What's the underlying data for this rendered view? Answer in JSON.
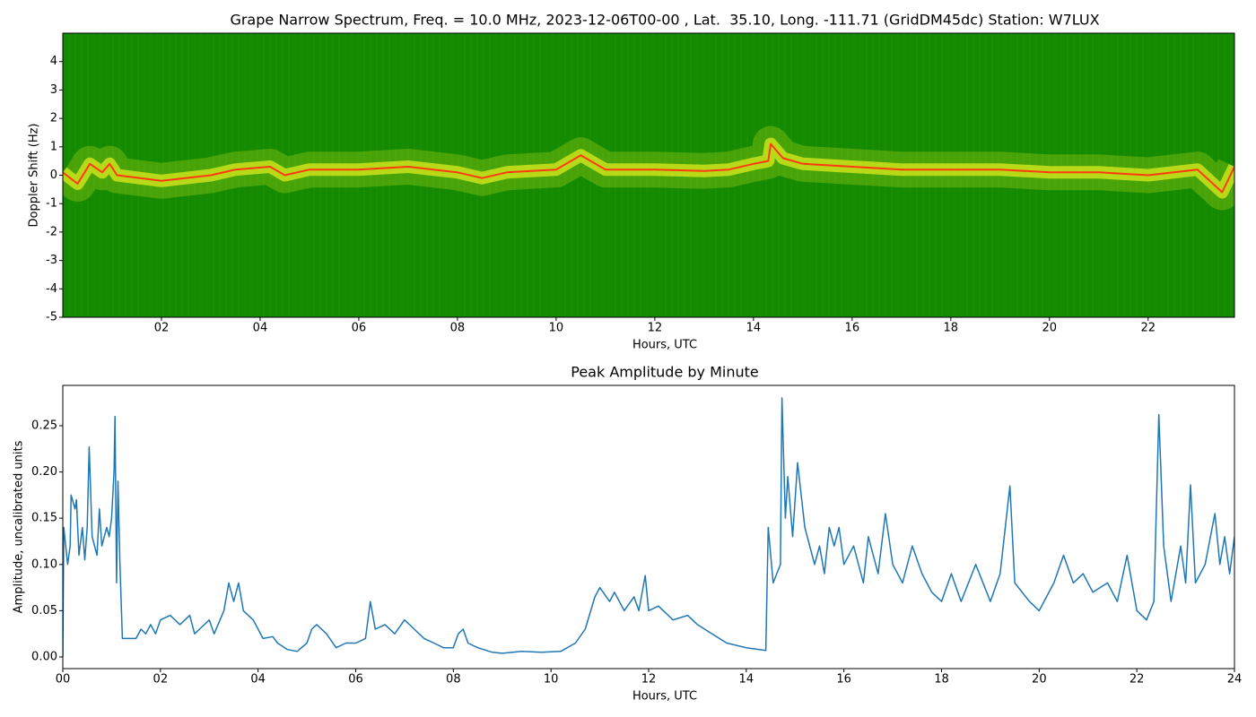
{
  "chart_data": [
    {
      "type": "spectrogram",
      "title": "Grape Narrow Spectrum, Freq. = 10.0 MHz, 2023-12-06T00-00 , Lat.  35.10, Long. -111.71 (GridDM45dc) Station: W7LUX",
      "x_label": "Hours, UTC",
      "y_label": "Doppler Shift (Hz)",
      "background": "#138a00",
      "glow": "#e8f020",
      "xlim": [
        0,
        23.75
      ],
      "ylim": [
        -5,
        5
      ],
      "xticks": [
        {
          "value": 2,
          "label": "02"
        },
        {
          "value": 4,
          "label": "04"
        },
        {
          "value": 6,
          "label": "06"
        },
        {
          "value": 8,
          "label": "08"
        },
        10,
        12,
        14,
        16,
        18,
        20,
        22
      ],
      "yticks": [
        -5,
        -4,
        -3,
        -2,
        -1,
        0,
        1,
        2,
        3,
        4
      ],
      "series": [
        {
          "color": "#ff3a10",
          "x": [
            0,
            0.3,
            0.55,
            0.8,
            0.95,
            1.1,
            2,
            3,
            3.5,
            4.2,
            4.5,
            5,
            6,
            7,
            8,
            8.5,
            9,
            10,
            10.5,
            11,
            12,
            13,
            13.5,
            14,
            14.3,
            14.35,
            14.6,
            15,
            16,
            17,
            18,
            19,
            20,
            21,
            22,
            23,
            23.5,
            23.75
          ],
          "values": [
            0.1,
            -0.3,
            0.4,
            0.1,
            0.4,
            0.0,
            -0.2,
            0.0,
            0.2,
            0.3,
            0.0,
            0.2,
            0.2,
            0.3,
            0.1,
            -0.1,
            0.1,
            0.2,
            0.7,
            0.2,
            0.2,
            0.15,
            0.2,
            0.4,
            0.5,
            1.1,
            0.6,
            0.4,
            0.3,
            0.2,
            0.2,
            0.2,
            0.1,
            0.1,
            0.0,
            0.2,
            -0.6,
            0.3
          ]
        }
      ]
    },
    {
      "type": "line",
      "title": "Peak Amplitude by Minute",
      "x_label": "Hours, UTC",
      "y_label": "Amplitude, uncalibrated units",
      "xlim": [
        0,
        24
      ],
      "ylim": [
        -0.0126,
        0.2936
      ],
      "xticks": [
        {
          "value": 0,
          "label": "00"
        },
        {
          "value": 2,
          "label": "02"
        },
        {
          "value": 4,
          "label": "04"
        },
        {
          "value": 6,
          "label": "06"
        },
        {
          "value": 8,
          "label": "08"
        },
        10,
        12,
        14,
        16,
        18,
        20,
        22,
        24
      ],
      "yticks": [
        {
          "value": 0,
          "label": "0.00"
        },
        0.05,
        {
          "value": 0.1,
          "label": "0.10"
        },
        0.15,
        {
          "value": 0.2,
          "label": "0.20"
        },
        0.25
      ],
      "series": [
        {
          "color": "#1f77b4",
          "x": [
            0.0,
            0.02,
            0.1,
            0.15,
            0.17,
            0.25,
            0.28,
            0.33,
            0.4,
            0.45,
            0.5,
            0.54,
            0.6,
            0.7,
            0.75,
            0.8,
            0.9,
            0.95,
            1.0,
            1.05,
            1.07,
            1.1,
            1.13,
            1.17,
            1.22,
            1.4,
            1.5,
            1.6,
            1.7,
            1.8,
            1.9,
            2.0,
            2.2,
            2.4,
            2.6,
            2.7,
            2.8,
            3.0,
            3.1,
            3.3,
            3.4,
            3.5,
            3.6,
            3.7,
            3.9,
            4.0,
            4.1,
            4.3,
            4.4,
            4.6,
            4.8,
            5.0,
            5.1,
            5.2,
            5.4,
            5.6,
            5.8,
            6.0,
            6.2,
            6.3,
            6.4,
            6.6,
            6.8,
            7.0,
            7.2,
            7.4,
            7.6,
            7.8,
            8.0,
            8.1,
            8.2,
            8.3,
            8.5,
            8.8,
            9.0,
            9.4,
            9.8,
            10.2,
            10.5,
            10.7,
            10.9,
            11.0,
            11.2,
            11.3,
            11.5,
            11.7,
            11.8,
            11.93,
            12.0,
            12.2,
            12.5,
            12.8,
            13.0,
            13.3,
            13.6,
            14.0,
            14.4,
            14.45,
            14.55,
            14.7,
            14.73,
            14.8,
            14.85,
            14.95,
            15.05,
            15.2,
            15.4,
            15.5,
            15.6,
            15.7,
            15.8,
            15.9,
            16.0,
            16.2,
            16.4,
            16.5,
            16.7,
            16.85,
            17.0,
            17.2,
            17.4,
            17.6,
            17.8,
            18.0,
            18.2,
            18.4,
            18.7,
            19.0,
            19.2,
            19.4,
            19.5,
            19.8,
            20.0,
            20.3,
            20.5,
            20.7,
            20.9,
            21.1,
            21.4,
            21.6,
            21.8,
            22.0,
            22.2,
            22.35,
            22.45,
            22.55,
            22.7,
            22.9,
            23.0,
            23.1,
            23.2,
            23.4,
            23.6,
            23.7,
            23.8,
            23.9,
            24.0
          ],
          "values": [
            0.0,
            0.14,
            0.1,
            0.12,
            0.175,
            0.16,
            0.17,
            0.11,
            0.14,
            0.105,
            0.14,
            0.227,
            0.13,
            0.11,
            0.16,
            0.12,
            0.14,
            0.13,
            0.15,
            0.2,
            0.26,
            0.08,
            0.19,
            0.1,
            0.02,
            0.02,
            0.02,
            0.03,
            0.025,
            0.035,
            0.025,
            0.04,
            0.045,
            0.035,
            0.045,
            0.025,
            0.03,
            0.04,
            0.025,
            0.05,
            0.08,
            0.06,
            0.08,
            0.05,
            0.04,
            0.03,
            0.02,
            0.022,
            0.015,
            0.008,
            0.006,
            0.015,
            0.03,
            0.035,
            0.025,
            0.01,
            0.015,
            0.015,
            0.02,
            0.06,
            0.03,
            0.035,
            0.025,
            0.04,
            0.03,
            0.02,
            0.015,
            0.01,
            0.01,
            0.025,
            0.03,
            0.015,
            0.01,
            0.005,
            0.004,
            0.006,
            0.005,
            0.006,
            0.015,
            0.03,
            0.065,
            0.075,
            0.06,
            0.07,
            0.05,
            0.065,
            0.05,
            0.088,
            0.05,
            0.055,
            0.04,
            0.045,
            0.035,
            0.025,
            0.015,
            0.01,
            0.007,
            0.14,
            0.08,
            0.1,
            0.28,
            0.15,
            0.195,
            0.13,
            0.21,
            0.14,
            0.1,
            0.12,
            0.09,
            0.14,
            0.12,
            0.14,
            0.1,
            0.12,
            0.08,
            0.13,
            0.09,
            0.155,
            0.1,
            0.08,
            0.12,
            0.09,
            0.07,
            0.06,
            0.09,
            0.06,
            0.1,
            0.06,
            0.09,
            0.185,
            0.08,
            0.06,
            0.05,
            0.08,
            0.11,
            0.08,
            0.09,
            0.07,
            0.08,
            0.06,
            0.11,
            0.05,
            0.04,
            0.06,
            0.262,
            0.12,
            0.06,
            0.12,
            0.08,
            0.186,
            0.08,
            0.1,
            0.155,
            0.1,
            0.13,
            0.09,
            0.13
          ]
        }
      ]
    }
  ]
}
